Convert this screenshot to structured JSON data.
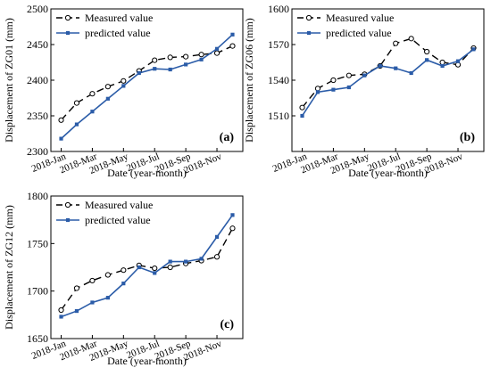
{
  "chart_data": [
    {
      "type": "line",
      "panel_label": "(a)",
      "xlabel": "Date (year-month)",
      "ylabel": "Displacement of ZG01 (mm)",
      "ylim": [
        2300,
        2500
      ],
      "yticks": [
        2300,
        2350,
        2400,
        2450,
        2500
      ],
      "xticks": [
        "2018-Jan",
        "2018-Mar",
        "2018-May",
        "2018-Jul",
        "2018-Sep",
        "2018-Nov"
      ],
      "legend_position": "top-left",
      "x": [
        1,
        2,
        3,
        4,
        5,
        6,
        7,
        8,
        9,
        10,
        11,
        12
      ],
      "series": [
        {
          "name": "Measured value",
          "style": "dashed-open-circle",
          "color": "#000000",
          "values": [
            2344,
            2368,
            2381,
            2391,
            2399,
            2413,
            2428,
            2432,
            2433,
            2436,
            2438,
            2448
          ]
        },
        {
          "name": "predicted value",
          "style": "solid-filled-square",
          "color": "#2b5ca8",
          "values": [
            2318,
            2338,
            2356,
            2374,
            2392,
            2410,
            2416,
            2415,
            2422,
            2429,
            2444,
            2464
          ]
        }
      ]
    },
    {
      "type": "line",
      "panel_label": "(b)",
      "xlabel": "Date (year-month)",
      "ylabel": "Displacement of ZG06 (mm)",
      "ylim": [
        1480,
        1600
      ],
      "yticks": [
        1510,
        1540,
        1570,
        1600
      ],
      "xticks": [
        "2018-Jan",
        "2018-Mar",
        "2018-May",
        "2018-Jul",
        "2018-Sep",
        "2018-Nov"
      ],
      "legend_position": "top-left",
      "x": [
        1,
        2,
        3,
        4,
        5,
        6,
        7,
        8,
        9,
        10,
        11,
        12
      ],
      "series": [
        {
          "name": "Measured value",
          "style": "dashed-open-circle",
          "color": "#000000",
          "values": [
            1517,
            1533,
            1540,
            1544,
            1545,
            1552,
            1571,
            1575,
            1564,
            1555,
            1553,
            1567
          ]
        },
        {
          "name": "predicted value",
          "style": "solid-filled-square",
          "color": "#2b5ca8",
          "values": [
            1510,
            1530,
            1532,
            1534,
            1544,
            1552,
            1550,
            1546,
            1557,
            1552,
            1556,
            1566
          ]
        }
      ]
    },
    {
      "type": "line",
      "panel_label": "(c)",
      "xlabel": "Date (year-month)",
      "ylabel": "Displacement of ZG12 (mm)",
      "ylim": [
        1650,
        1800
      ],
      "yticks": [
        1650,
        1700,
        1750,
        1800
      ],
      "xticks": [
        "2018-Jan",
        "2018-Mar",
        "2018-May",
        "2018-Jul",
        "2018-Sep",
        "2018-Nov"
      ],
      "legend_position": "top-left",
      "x": [
        1,
        2,
        3,
        4,
        5,
        6,
        7,
        8,
        9,
        10,
        11,
        12
      ],
      "series": [
        {
          "name": "Measured value",
          "style": "dashed-open-circle",
          "color": "#000000",
          "values": [
            1680,
            1703,
            1711,
            1717,
            1722,
            1727,
            1724,
            1725,
            1729,
            1732,
            1736,
            1766
          ]
        },
        {
          "name": "predicted value",
          "style": "solid-filled-square",
          "color": "#2b5ca8",
          "values": [
            1673,
            1679,
            1688,
            1693,
            1708,
            1725,
            1719,
            1731,
            1731,
            1734,
            1757,
            1780
          ]
        }
      ]
    }
  ]
}
